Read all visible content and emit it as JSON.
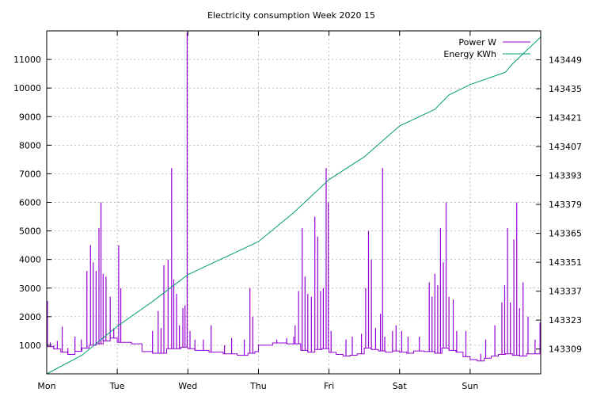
{
  "chart_data": {
    "type": "line",
    "title": "Electricity consumption Week 2020 15",
    "x_axis": {
      "categories": [
        "Mon",
        "Tue",
        "Wed",
        "Thu",
        "Fri",
        "Sat",
        "Sun"
      ],
      "range_days": [
        0,
        7
      ]
    },
    "y_axis_left": {
      "ticks": [
        1000,
        2000,
        3000,
        4000,
        5000,
        6000,
        7000,
        8000,
        9000,
        10000,
        11000
      ],
      "range": [
        0,
        12000
      ]
    },
    "y_axis_right": {
      "ticks": [
        143309,
        143323,
        143337,
        143351,
        143365,
        143379,
        143393,
        143407,
        143421,
        143435,
        143449
      ],
      "range": [
        143297,
        143463
      ]
    },
    "grid": true,
    "legend_position": "top-right",
    "series": [
      {
        "name": "Power W",
        "color": "#9400d3",
        "axis": "left",
        "baseline": [
          [
            0.0,
            950
          ],
          [
            0.1,
            870
          ],
          [
            0.2,
            760
          ],
          [
            0.3,
            680
          ],
          [
            0.4,
            790
          ],
          [
            0.5,
            900
          ],
          [
            0.6,
            1000
          ],
          [
            0.7,
            1050
          ],
          [
            0.8,
            1150
          ],
          [
            0.9,
            1250
          ],
          [
            1.0,
            1100
          ],
          [
            1.1,
            1100
          ],
          [
            1.2,
            1050
          ],
          [
            1.3,
            1050
          ],
          [
            1.35,
            780
          ],
          [
            1.5,
            720
          ],
          [
            1.7,
            880
          ],
          [
            1.9,
            930
          ],
          [
            2.0,
            880
          ],
          [
            2.1,
            820
          ],
          [
            2.3,
            760
          ],
          [
            2.5,
            700
          ],
          [
            2.7,
            650
          ],
          [
            2.85,
            720
          ],
          [
            2.95,
            780
          ],
          [
            3.0,
            1000
          ],
          [
            3.2,
            1080
          ],
          [
            3.4,
            1050
          ],
          [
            3.5,
            1050
          ],
          [
            3.6,
            820
          ],
          [
            3.7,
            760
          ],
          [
            3.8,
            850
          ],
          [
            3.9,
            880
          ],
          [
            4.0,
            750
          ],
          [
            4.1,
            680
          ],
          [
            4.2,
            620
          ],
          [
            4.3,
            650
          ],
          [
            4.4,
            700
          ],
          [
            4.5,
            900
          ],
          [
            4.6,
            850
          ],
          [
            4.7,
            800
          ],
          [
            4.8,
            760
          ],
          [
            4.9,
            800
          ],
          [
            5.0,
            760
          ],
          [
            5.1,
            720
          ],
          [
            5.2,
            800
          ],
          [
            5.35,
            780
          ],
          [
            5.5,
            720
          ],
          [
            5.6,
            900
          ],
          [
            5.7,
            820
          ],
          [
            5.8,
            760
          ],
          [
            5.9,
            600
          ],
          [
            6.0,
            500
          ],
          [
            6.1,
            450
          ],
          [
            6.2,
            550
          ],
          [
            6.3,
            620
          ],
          [
            6.4,
            680
          ],
          [
            6.5,
            700
          ],
          [
            6.6,
            650
          ],
          [
            6.7,
            620
          ],
          [
            6.8,
            700
          ],
          [
            7.0,
            680
          ]
        ],
        "spikes": [
          [
            0.01,
            2550
          ],
          [
            0.05,
            1100
          ],
          [
            0.1,
            1000
          ],
          [
            0.15,
            1150
          ],
          [
            0.22,
            1650
          ],
          [
            0.3,
            900
          ],
          [
            0.4,
            1300
          ],
          [
            0.49,
            1200
          ],
          [
            0.57,
            3600
          ],
          [
            0.62,
            4500
          ],
          [
            0.66,
            3900
          ],
          [
            0.7,
            3600
          ],
          [
            0.74,
            5100
          ],
          [
            0.77,
            6000
          ],
          [
            0.8,
            3500
          ],
          [
            0.84,
            3400
          ],
          [
            0.9,
            2700
          ],
          [
            0.95,
            1600
          ],
          [
            1.02,
            4500
          ],
          [
            1.05,
            3000
          ],
          [
            1.5,
            1500
          ],
          [
            1.58,
            2200
          ],
          [
            1.62,
            1600
          ],
          [
            1.66,
            3800
          ],
          [
            1.72,
            4000
          ],
          [
            1.77,
            7200
          ],
          [
            1.8,
            3300
          ],
          [
            1.84,
            2800
          ],
          [
            1.88,
            1700
          ],
          [
            1.93,
            2300
          ],
          [
            1.96,
            2400
          ],
          [
            1.99,
            11950
          ],
          [
            2.03,
            1500
          ],
          [
            2.1,
            1200
          ],
          [
            2.22,
            1200
          ],
          [
            2.33,
            1700
          ],
          [
            2.52,
            1000
          ],
          [
            2.62,
            1250
          ],
          [
            2.8,
            1200
          ],
          [
            2.88,
            3000
          ],
          [
            2.92,
            2000
          ],
          [
            3.26,
            1200
          ],
          [
            3.4,
            1250
          ],
          [
            3.5,
            1300
          ],
          [
            3.52,
            1700
          ],
          [
            3.57,
            2900
          ],
          [
            3.62,
            5100
          ],
          [
            3.66,
            3400
          ],
          [
            3.7,
            2800
          ],
          [
            3.75,
            2700
          ],
          [
            3.8,
            5500
          ],
          [
            3.84,
            4800
          ],
          [
            3.88,
            2900
          ],
          [
            3.92,
            3000
          ],
          [
            3.96,
            7200
          ],
          [
            3.99,
            6000
          ],
          [
            4.03,
            1500
          ],
          [
            4.24,
            1200
          ],
          [
            4.33,
            1300
          ],
          [
            4.46,
            1400
          ],
          [
            4.52,
            3000
          ],
          [
            4.56,
            5000
          ],
          [
            4.6,
            4000
          ],
          [
            4.66,
            1600
          ],
          [
            4.73,
            2100
          ],
          [
            4.76,
            7200
          ],
          [
            4.79,
            1300
          ],
          [
            4.9,
            1500
          ],
          [
            4.95,
            1700
          ],
          [
            5.03,
            1500
          ],
          [
            5.12,
            1300
          ],
          [
            5.28,
            1300
          ],
          [
            5.42,
            3200
          ],
          [
            5.46,
            2700
          ],
          [
            5.5,
            3500
          ],
          [
            5.54,
            3100
          ],
          [
            5.58,
            5100
          ],
          [
            5.62,
            3900
          ],
          [
            5.66,
            6000
          ],
          [
            5.7,
            2700
          ],
          [
            5.76,
            2600
          ],
          [
            5.81,
            1500
          ],
          [
            5.94,
            1500
          ],
          [
            6.15,
            700
          ],
          [
            6.22,
            1200
          ],
          [
            6.35,
            1700
          ],
          [
            6.45,
            2500
          ],
          [
            6.49,
            3100
          ],
          [
            6.53,
            5100
          ],
          [
            6.57,
            2500
          ],
          [
            6.62,
            4700
          ],
          [
            6.66,
            6000
          ],
          [
            6.7,
            2300
          ],
          [
            6.75,
            3200
          ],
          [
            6.82,
            2000
          ],
          [
            6.92,
            1200
          ],
          [
            6.99,
            1800
          ]
        ]
      },
      {
        "name": "Energy KWh",
        "color": "#009e73",
        "axis": "right",
        "points": [
          [
            0.0,
            143297
          ],
          [
            0.5,
            143306
          ],
          [
            1.0,
            143320
          ],
          [
            1.5,
            143332
          ],
          [
            2.0,
            143345
          ],
          [
            2.5,
            143353
          ],
          [
            3.0,
            143361
          ],
          [
            3.5,
            143375
          ],
          [
            4.0,
            143391
          ],
          [
            4.5,
            143402
          ],
          [
            5.0,
            143417
          ],
          [
            5.5,
            143425
          ],
          [
            5.7,
            143432
          ],
          [
            6.0,
            143437
          ],
          [
            6.5,
            143443
          ],
          [
            6.6,
            143447
          ],
          [
            7.0,
            143460
          ]
        ]
      }
    ]
  }
}
